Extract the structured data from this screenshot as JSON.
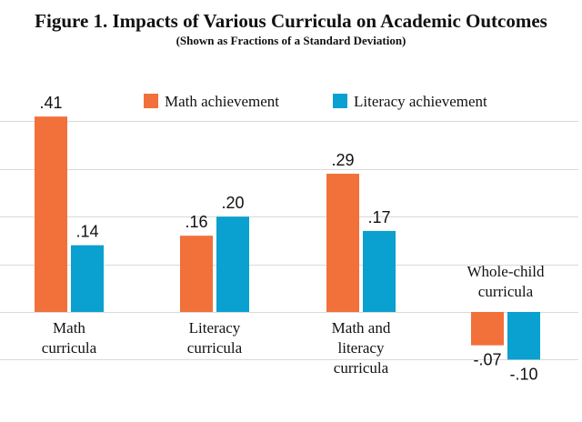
{
  "chart_data": {
    "type": "bar",
    "title": "Figure 1. Impacts of Various Curricula on Academic Outcomes",
    "subtitle": "(Shown as Fractions of a Standard Deviation)",
    "categories": [
      [
        "Math",
        "curricula"
      ],
      [
        "Literacy",
        "curricula"
      ],
      [
        "Math and",
        "literacy",
        "curricula"
      ],
      [
        "Whole-child",
        "curricula"
      ]
    ],
    "series": [
      {
        "name": "Math achievement",
        "color": "#F2703A",
        "values": [
          0.41,
          0.16,
          0.29,
          -0.07
        ],
        "labels": [
          ".41",
          ".16",
          ".29",
          "-.07"
        ]
      },
      {
        "name": "Literacy achievement",
        "color": "#0AA0CF",
        "values": [
          0.14,
          0.2,
          0.17,
          -0.1
        ],
        "labels": [
          ".14",
          ".20",
          ".17",
          "-.10"
        ]
      }
    ],
    "ylim": [
      -0.2,
      0.5
    ],
    "gridlines": [
      -0.1,
      0,
      0.1,
      0.2,
      0.3,
      0.4
    ],
    "legend_position": "top-center",
    "gridline_color": "#d9d9d9"
  }
}
